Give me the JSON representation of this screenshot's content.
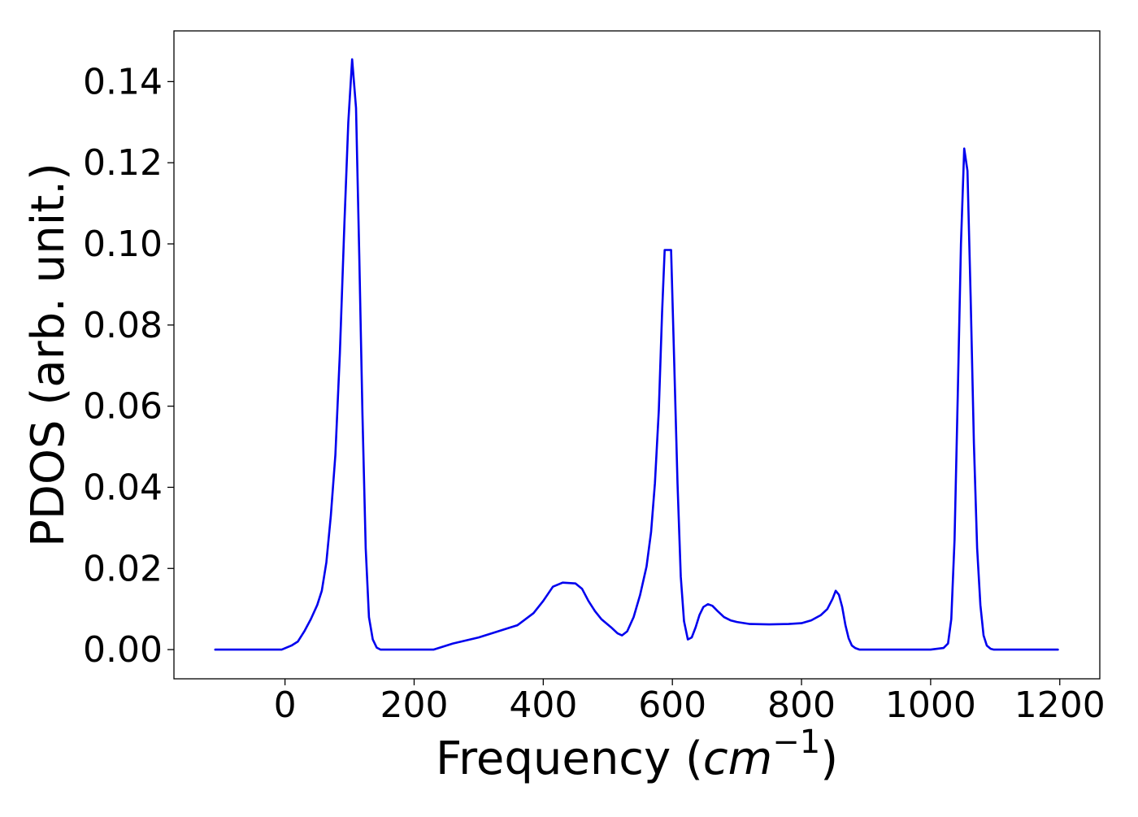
{
  "chart_data": {
    "type": "line",
    "xlabel_main": "Frequency (",
    "xlabel_unit": "cm",
    "xlabel_exponent": "−1",
    "xlabel_close": ")",
    "ylabel": "PDOS (arb. unit.)",
    "xlim": [
      -172,
      1262
    ],
    "ylim": [
      -0.0072,
      0.1525
    ],
    "grid": false,
    "x_ticks": [
      0,
      200,
      400,
      600,
      800,
      1000,
      1200
    ],
    "x_tick_labels": [
      "0",
      "200",
      "400",
      "600",
      "800",
      "1000",
      "1200"
    ],
    "y_ticks": [
      0.0,
      0.02,
      0.04,
      0.06,
      0.08,
      0.1,
      0.12,
      0.14
    ],
    "y_tick_labels": [
      "0.00",
      "0.02",
      "0.04",
      "0.06",
      "0.08",
      "0.10",
      "0.12",
      "0.14"
    ],
    "series": [
      {
        "color": "#0000ee",
        "x": [
          -108,
          -80,
          -40,
          -5,
          10,
          20,
          30,
          40,
          50,
          57,
          64,
          71,
          78,
          85,
          92,
          98,
          104,
          110,
          115,
          120,
          125,
          130,
          136,
          142,
          148,
          155,
          165,
          180,
          200,
          230,
          260,
          300,
          330,
          360,
          385,
          400,
          415,
          430,
          450,
          460,
          470,
          480,
          490,
          505,
          515,
          522,
          530,
          540,
          550,
          560,
          567,
          573,
          579,
          584,
          588,
          592,
          598,
          602,
          608,
          613,
          618,
          624,
          630,
          636,
          642,
          648,
          655,
          662,
          670,
          680,
          690,
          700,
          720,
          750,
          780,
          800,
          815,
          830,
          840,
          848,
          853,
          858,
          863,
          868,
          873,
          878,
          883,
          890,
          900,
          920,
          960,
          1000,
          1020,
          1027,
          1032,
          1037,
          1042,
          1047,
          1052,
          1057,
          1062,
          1067,
          1072,
          1077,
          1082,
          1087,
          1093,
          1098,
          1103,
          1108,
          1115,
          1130,
          1160,
          1197
        ],
        "y": [
          0.0,
          0.0,
          0.0,
          0.0,
          0.001,
          0.002,
          0.0045,
          0.0075,
          0.011,
          0.0145,
          0.0215,
          0.033,
          0.048,
          0.073,
          0.105,
          0.13,
          0.1455,
          0.1335,
          0.097,
          0.058,
          0.025,
          0.008,
          0.0025,
          0.0005,
          0.0,
          0.0,
          0.0,
          0.0,
          0.0,
          0.0,
          0.0015,
          0.003,
          0.0045,
          0.006,
          0.009,
          0.012,
          0.0155,
          0.0165,
          0.0163,
          0.015,
          0.012,
          0.0095,
          0.0075,
          0.0055,
          0.004,
          0.0035,
          0.0045,
          0.008,
          0.0135,
          0.0205,
          0.029,
          0.041,
          0.059,
          0.083,
          0.0985,
          0.0985,
          0.0985,
          0.0755,
          0.041,
          0.018,
          0.007,
          0.0025,
          0.003,
          0.0055,
          0.0085,
          0.0105,
          0.0112,
          0.0108,
          0.0095,
          0.008,
          0.0072,
          0.0068,
          0.0063,
          0.0062,
          0.0063,
          0.0065,
          0.0072,
          0.0085,
          0.01,
          0.0125,
          0.0145,
          0.0135,
          0.0105,
          0.006,
          0.0028,
          0.001,
          0.0004,
          0.0,
          0.0,
          0.0,
          0.0,
          0.0,
          0.0004,
          0.0015,
          0.0075,
          0.027,
          0.063,
          0.1,
          0.1235,
          0.118,
          0.087,
          0.051,
          0.025,
          0.011,
          0.0035,
          0.001,
          0.0002,
          0.0,
          0.0,
          0.0,
          0.0,
          0.0,
          0.0,
          0.0
        ]
      }
    ]
  }
}
